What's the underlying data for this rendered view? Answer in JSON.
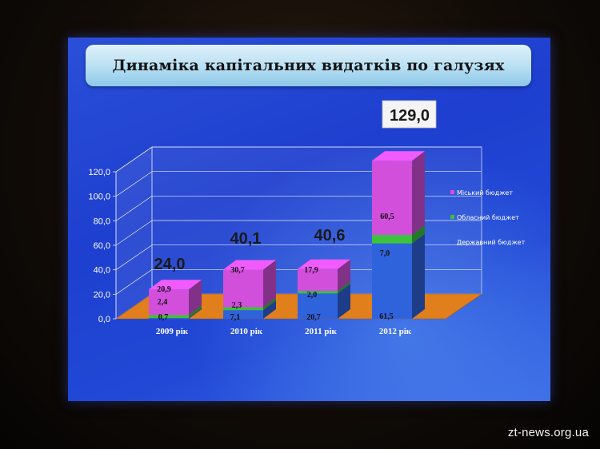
{
  "slide": {
    "title": "Динаміка капітальних видатків по галузях"
  },
  "watermark": "zt-news.org.ua",
  "colors": {
    "city": "#d24fdc",
    "oblast": "#3cc23c",
    "state": "#2f63dc",
    "floor": "#e07f1c"
  },
  "chart_data": {
    "type": "bar",
    "stacked": true,
    "three_d": true,
    "categories": [
      "2009 рік",
      "2010 рік",
      "2011 рік",
      "2012 рік"
    ],
    "ylim": [
      0,
      120
    ],
    "yticks": [
      "0,0",
      "20,0",
      "40,0",
      "60,0",
      "80,0",
      "100,0",
      "120,0"
    ],
    "grid": true,
    "legend_position": "right",
    "series": [
      {
        "name": "Державний бюджет",
        "values": [
          0.7,
          7.1,
          20.7,
          61.5
        ],
        "labels": [
          "0,7",
          "7,1",
          "20,7",
          "61,5"
        ],
        "inner_labels": [
          "",
          "2,3",
          "2,0",
          "7,0"
        ]
      },
      {
        "name": "Обласний бюджет",
        "values": [
          2.4,
          2.3,
          2.0,
          7.0
        ],
        "labels": [
          "2,4",
          "",
          "",
          ""
        ]
      },
      {
        "name": "Міський бюджет",
        "values": [
          20.9,
          30.7,
          17.9,
          60.5
        ],
        "labels": [
          "20,9",
          "30,7",
          "17,9",
          "60,5"
        ]
      }
    ],
    "totals": [
      "24,0",
      "40,1",
      "40,6",
      "129,0"
    ]
  }
}
